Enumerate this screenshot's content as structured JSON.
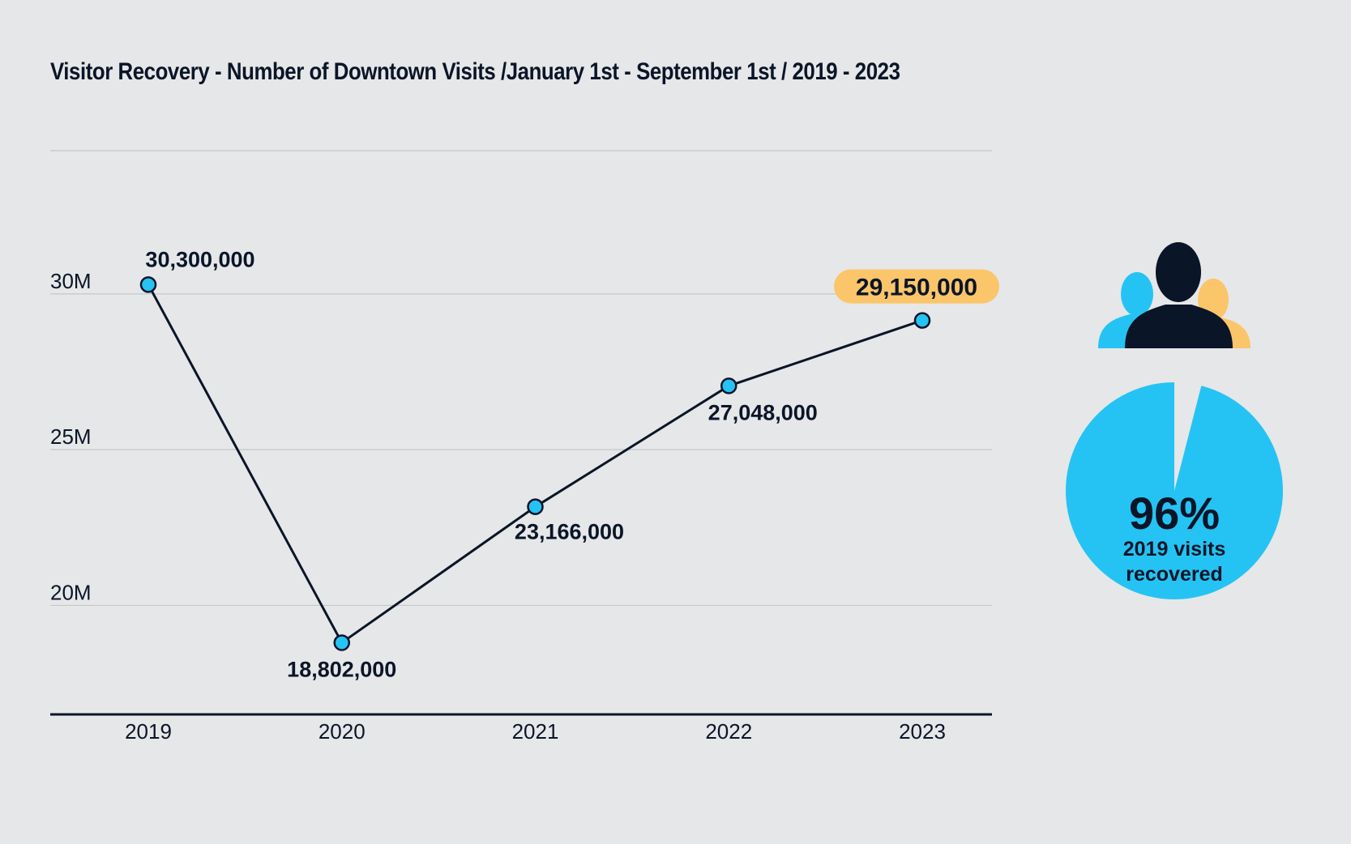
{
  "title": "Visitor Recovery - Number of Downtown Visits /January 1st - September 1st / 2019 - 2023",
  "colors": {
    "background": "#e6e7e8",
    "line": "#0b1528",
    "marker": "#25c3f3",
    "highlight": "#fbc56a",
    "grid": "#c5c7ca",
    "pie": "#25c3f3",
    "person_front": "#0b1528",
    "person_left": "#25c3f3",
    "person_right": "#fbc56a"
  },
  "chart_data": {
    "type": "line",
    "x": [
      "2019",
      "2020",
      "2021",
      "2022",
      "2023"
    ],
    "series": [
      {
        "values": [
          30300000,
          18802000,
          23166000,
          27048000,
          29150000
        ],
        "labels": [
          "30,300,000",
          "18,802,000",
          "23,166,000",
          "27,048,000",
          "29,150,000"
        ]
      }
    ],
    "highlighted_point": "2023",
    "yticks": [
      {
        "value": 20000000,
        "label": "20M"
      },
      {
        "value": 25000000,
        "label": "25M"
      },
      {
        "value": 30000000,
        "label": "30M"
      }
    ],
    "ylim": [
      16500000,
      34600000
    ],
    "grid": true,
    "legend": "none"
  },
  "recovery": {
    "percent_value": 96,
    "percent_label": "96%",
    "caption_line1": "2019 visits",
    "caption_line2": "recovered",
    "icon": "people-group-icon"
  }
}
